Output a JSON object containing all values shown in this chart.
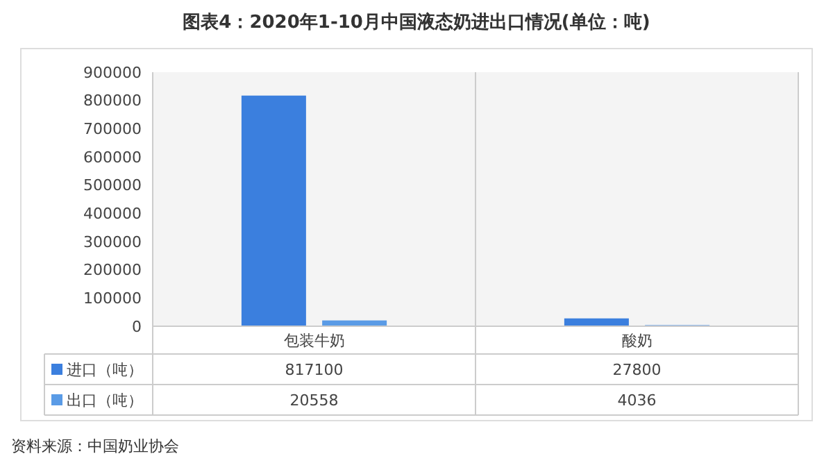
{
  "chart_data": {
    "type": "bar",
    "title": "图表4：2020年1-10月中国液态奶进出口情况(单位：吨)",
    "categories": [
      "包装牛奶",
      "酸奶"
    ],
    "series": [
      {
        "name": "进口（吨）",
        "color": "#3b7fde",
        "values": [
          817100,
          27800
        ]
      },
      {
        "name": "出口（吨）",
        "color": "#5a9be6",
        "values": [
          20558,
          4036
        ]
      }
    ],
    "ylim": [
      0,
      900000
    ],
    "yticks": [
      0,
      100000,
      200000,
      300000,
      400000,
      500000,
      600000,
      700000,
      800000,
      900000
    ],
    "grid": false,
    "legend": "bottom",
    "data_labels": true,
    "annotations": [
      "资料来源：中国奶业协会"
    ]
  }
}
